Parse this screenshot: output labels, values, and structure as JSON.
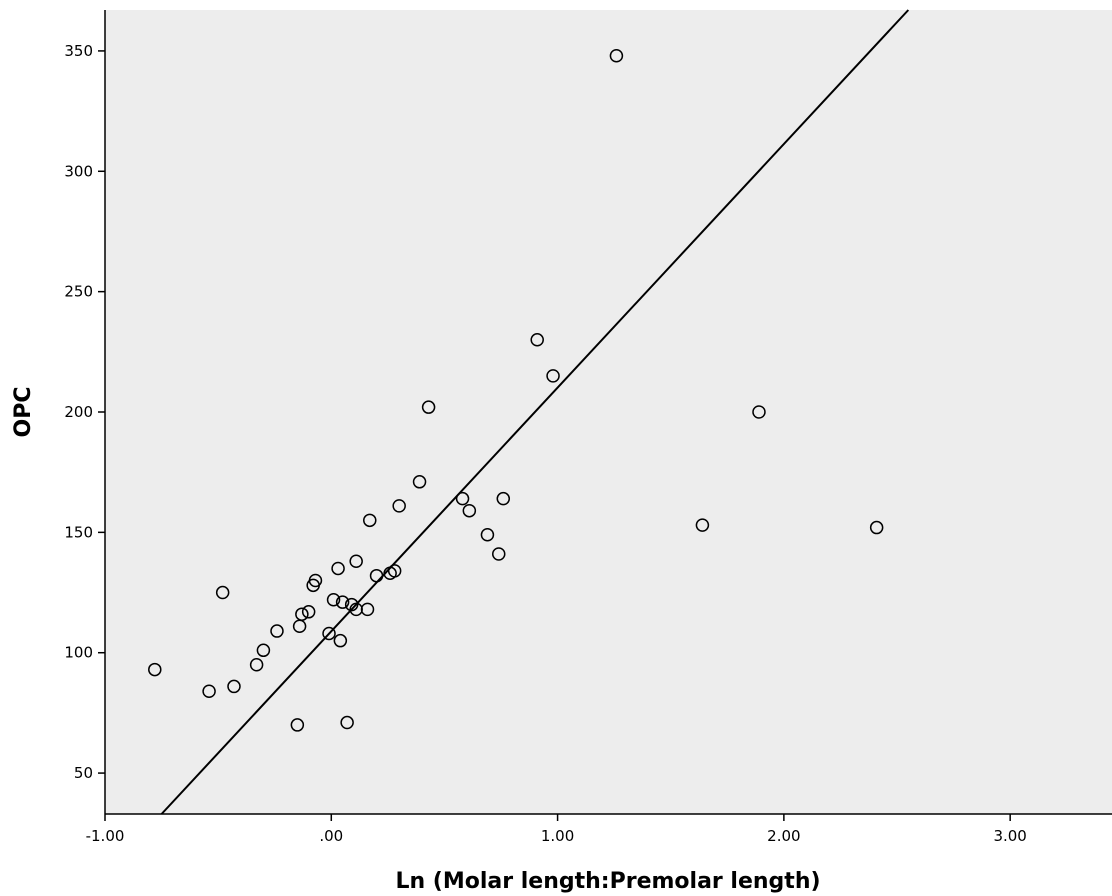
{
  "chart_data": {
    "type": "scatter",
    "title": "",
    "xlabel": "Ln (Molar length:Premolar length)",
    "ylabel": "OPC",
    "xlim": [
      -1.0,
      3.45
    ],
    "ylim": [
      33,
      367
    ],
    "x_ticks": [
      -1.0,
      0.0,
      1.0,
      2.0,
      3.0
    ],
    "x_tick_labels": [
      "-1.00",
      ".00",
      "1.00",
      "2.00",
      "3.00"
    ],
    "y_ticks": [
      50,
      100,
      150,
      200,
      250,
      300,
      350
    ],
    "y_tick_labels": [
      "50",
      "100",
      "150",
      "200",
      "250",
      "300",
      "350"
    ],
    "grid": false,
    "legend": "none",
    "colors": {
      "plot_background": "#ededed",
      "marker": "#000000",
      "line": "#000000"
    },
    "series": [
      {
        "x": [
          -0.78,
          -0.54,
          -0.48,
          -0.43,
          -0.33,
          -0.3,
          -0.24,
          -0.15,
          -0.14,
          -0.13,
          -0.1,
          -0.08,
          -0.07,
          -0.01,
          0.01,
          0.03,
          0.04,
          0.05,
          0.07,
          0.09,
          0.11,
          0.11,
          0.16,
          0.17,
          0.2,
          0.26,
          0.28,
          0.3,
          0.39,
          0.43,
          0.58,
          0.61,
          0.69,
          0.74,
          0.76,
          0.91,
          0.98,
          1.26,
          1.64,
          1.89,
          2.41
        ],
        "y": [
          93,
          84,
          125,
          86,
          95,
          101,
          109,
          70,
          111,
          116,
          117,
          128,
          130,
          108,
          122,
          135,
          105,
          121,
          71,
          120,
          118,
          138,
          118,
          155,
          132,
          133,
          134,
          161,
          171,
          202,
          164,
          159,
          149,
          141,
          164,
          230,
          215,
          348,
          153,
          200,
          152
        ]
      }
    ],
    "regression_line": {
      "x": [
        -0.75,
        2.55
      ],
      "y": [
        33,
        367
      ]
    }
  }
}
